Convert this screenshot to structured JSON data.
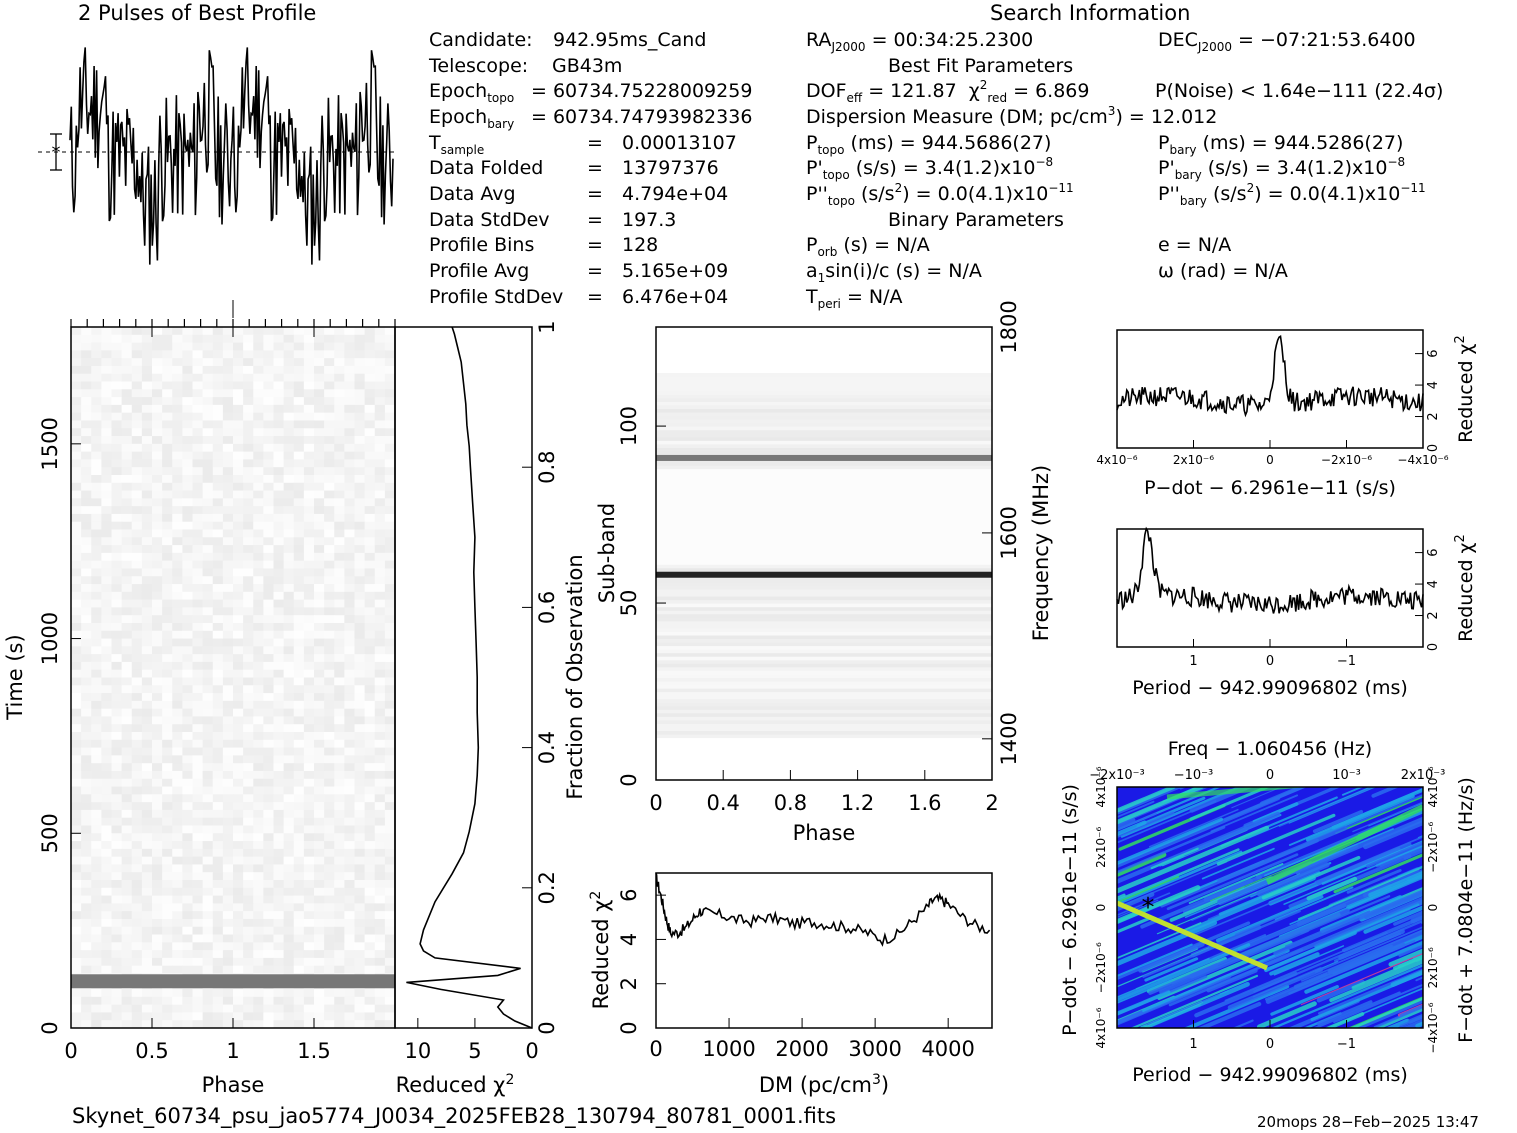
{
  "header": {
    "profile_title": "2 Pulses of Best Profile",
    "search_title": "Search Information",
    "best_fit_title": "Best Fit Parameters",
    "binary_title": "Binary Parameters"
  },
  "info_left": [
    {
      "label": "Candidate:",
      "value": "942.95ms_Cand"
    },
    {
      "label": "Telescope:",
      "value": "GB43m"
    },
    {
      "label": "Epoch",
      "sub": "topo",
      "value": "= 60734.75228009259"
    },
    {
      "label": "Epoch",
      "sub": "bary",
      "value": "= 60734.74793982336"
    },
    {
      "label": "T",
      "sub": "sample",
      "value": "0.00013107"
    },
    {
      "label": "Data Folded",
      "value": "13797376"
    },
    {
      "label": "Data Avg",
      "value": "4.794e+04"
    },
    {
      "label": "Data StdDev",
      "value": "197.3"
    },
    {
      "label": "Profile Bins",
      "value": "128"
    },
    {
      "label": "Profile Avg",
      "value": "5.165e+09"
    },
    {
      "label": "Profile StdDev",
      "value": "6.476e+04"
    }
  ],
  "info_mid": {
    "ra_label": "RA",
    "ra_sub": "J2000",
    "ra_value": "= 00:34:25.2300",
    "dec_label": "DEC",
    "dec_sub": "J2000",
    "dec_value": "= −07:21:53.6400",
    "dof_label": "DOF",
    "dof_sub": "eff",
    "dof_value": "= 121.87",
    "chi_label": "χ",
    "chi_sup": "2",
    "chi_sub": "red",
    "chi_value": "= 6.869",
    "noise": "P(Noise) < 1.64e−111  (22.4σ)",
    "dm": "Dispersion Measure (DM; pc/cm",
    "dm_sup": "3",
    "dm_value": ") = 12.012",
    "ptopo_label": "P",
    "ptopo_sub": "topo",
    "ptopo_value": "(ms) =  944.5686(27)",
    "pbary_label": "P",
    "pbary_sub": "bary",
    "pbary_value": "(ms) =  944.5286(27)",
    "pdtopo_label": "P'",
    "pdtopo_sub": "topo",
    "pdtopo_value": "(s/s) =  3.4(1.2)x10",
    "pdtopo_exp": "−8",
    "pdbary_label": "P'",
    "pdbary_sub": "bary",
    "pdbary_value": "(s/s) =  3.4(1.2)x10",
    "pdbary_exp": "−8",
    "pddtopo_label": "P''",
    "pddtopo_sub": "topo",
    "pddtopo_value": "(s/s",
    "pddtopo_sup": "2",
    "pddtopo_rest": ") = 0.0(4.1)x10",
    "pddtopo_exp": "−11",
    "pddbary_label": "P''",
    "pddbary_sub": "bary",
    "pddbary_value": "(s/s",
    "pddbary_sup": "2",
    "pddbary_rest": ") = 0.0(4.1)x10",
    "pddbary_exp": "−11",
    "porb_label": "P",
    "porb_sub": "orb",
    "porb_value": "(s) = N/A",
    "a1_label": "a",
    "a1_sub": "1",
    "a1_value": "sin(i)/c (s) = N/A",
    "tperi_label": "T",
    "tperi_sub": "peri",
    "tperi_value": "= N/A",
    "e_value": "e = N/A",
    "omega_value": "ω (rad) = N/A"
  },
  "footer": {
    "filename": "Skynet_60734_psu_jao5774_J0034_2025FEB28_130794_80781_0001.fits",
    "stamp": "20mops 28−Feb−2025 13:47"
  },
  "chart_data": [
    {
      "id": "profile",
      "type": "line",
      "title": "2 Pulses of Best Profile",
      "xlim": [
        0,
        2
      ],
      "seed": 11,
      "n": 256,
      "period_repeat": 128,
      "baseline": 0.5
    },
    {
      "id": "time_phase",
      "type": "heatmap",
      "xlabel": "Phase",
      "ylabel": "Time (s)",
      "xlim": [
        0,
        2
      ],
      "ylim": [
        0,
        1800
      ],
      "xticks": [
        0,
        0.5,
        1,
        1.5
      ],
      "xticklabels": [
        "0",
        "0.5",
        "1",
        "1.5"
      ],
      "yticks": [
        0,
        500,
        1000,
        1500
      ],
      "yticklabels": [
        "0",
        "500",
        "1000",
        "1500"
      ],
      "bright_row_time": 120
    },
    {
      "id": "time_chi2",
      "type": "line",
      "xlabel": "Reduced χ",
      "xlabel_sup": "2",
      "ylabel": "Fraction of Observation",
      "xlim": [
        12,
        0
      ],
      "ylim": [
        0,
        1
      ],
      "xticks": [
        10,
        5,
        0
      ],
      "xticklabels": [
        "10",
        "5",
        "0"
      ],
      "yticks": [
        0,
        0.2,
        0.4,
        0.6,
        0.8,
        1
      ],
      "yticklabels": [
        "0",
        "0.2",
        "0.4",
        "0.6",
        "0.8",
        "1"
      ],
      "x": [
        0,
        1.5,
        2.5,
        3,
        2.5,
        8,
        11,
        3,
        1,
        8.5,
        9.5,
        9.8,
        9.5,
        8.5,
        7,
        6,
        5.5,
        5,
        4.8,
        4.7,
        4.8,
        4.8,
        4.9,
        5,
        5.1,
        5,
        5.2,
        5.4,
        5.5,
        5.7,
        5.8,
        6,
        6.2,
        6.5,
        6.8,
        7
      ],
      "y": [
        0,
        0.01,
        0.02,
        0.03,
        0.04,
        0.055,
        0.065,
        0.075,
        0.085,
        0.1,
        0.11,
        0.12,
        0.14,
        0.18,
        0.22,
        0.25,
        0.28,
        0.32,
        0.36,
        0.4,
        0.45,
        0.5,
        0.55,
        0.6,
        0.65,
        0.7,
        0.75,
        0.8,
        0.83,
        0.86,
        0.89,
        0.92,
        0.95,
        0.97,
        0.99,
        1
      ]
    },
    {
      "id": "subband_phase",
      "type": "heatmap",
      "xlabel": "Phase",
      "ylabel": "Sub-band",
      "ylabel_right": "Frequency (MHz)",
      "xlim": [
        0,
        2
      ],
      "ylim": [
        0,
        128
      ],
      "xticks": [
        0,
        0.4,
        0.8,
        1.2,
        1.6,
        2
      ],
      "xticklabels": [
        "0",
        "0.4",
        "0.8",
        "1.2",
        "1.6",
        "2"
      ],
      "yticks": [
        0,
        50,
        100
      ],
      "yticklabels": [
        "0",
        "50",
        "100"
      ],
      "freq_ticks": [
        1400,
        1600,
        1800
      ],
      "freq_range": [
        1360,
        1800
      ],
      "bright_bands": [
        58,
        91
      ]
    },
    {
      "id": "dm_chi2",
      "type": "line",
      "xlabel": "DM (pc/cm",
      "xlabel_sup": "3",
      "xlabel_end": ")",
      "ylabel": "Reduced χ",
      "ylabel_sup": "2",
      "xlim": [
        0,
        4600
      ],
      "ylim": [
        0,
        7
      ],
      "xticks": [
        0,
        1000,
        2000,
        3000,
        4000
      ],
      "xticklabels": [
        "0",
        "1000",
        "2000",
        "3000",
        "4000"
      ],
      "yticks": [
        0,
        2,
        4,
        6
      ],
      "yticklabels": [
        "0",
        "2",
        "4",
        "6"
      ],
      "x": [
        0,
        50,
        100,
        150,
        200,
        300,
        400,
        500,
        600,
        700,
        900,
        1100,
        1300,
        1500,
        1700,
        1900,
        2100,
        2300,
        2500,
        2700,
        2900,
        3100,
        3300,
        3500,
        3700,
        3800,
        3900,
        4000,
        4200,
        4400,
        4600
      ],
      "y": [
        6.8,
        6.2,
        5.5,
        4.8,
        4.3,
        4.3,
        4.5,
        4.9,
        5.3,
        5.2,
        5.1,
        4.9,
        4.8,
        5.0,
        4.9,
        4.7,
        4.8,
        4.7,
        4.6,
        4.5,
        4.3,
        4.0,
        4.2,
        4.8,
        5.4,
        5.8,
        5.8,
        5.6,
        5.0,
        4.6,
        4.4
      ]
    },
    {
      "id": "pdot_chi2",
      "type": "line",
      "xlabel": "P−dot − 6.2961e−11 (s/s)",
      "ylabel": "Reduced χ",
      "ylabel_sup": "2",
      "xlim": [
        4.5e-08,
        -4.5e-08
      ],
      "ylim": [
        0,
        7.5
      ],
      "xticklabels": [
        "4x10⁻⁶",
        "2x10⁻⁶",
        "0",
        "−2x10⁻⁶",
        "−4x10⁻⁶"
      ],
      "yticks": [
        0,
        2,
        4,
        6
      ],
      "yticklabels": [
        "0",
        "2",
        "4",
        "6"
      ],
      "seed": 21,
      "peak_x": 0.53,
      "peak_value": 7
    },
    {
      "id": "period_chi2",
      "type": "line",
      "xlabel": "Period − 942.99096802 (ms)",
      "ylabel": "Reduced χ",
      "ylabel_sup": "2",
      "xlim": [
        2,
        -2
      ],
      "ylim": [
        0,
        7.5
      ],
      "xticks": [
        1,
        0,
        -1
      ],
      "xticklabels": [
        "1",
        "0",
        "−1"
      ],
      "yticks": [
        0,
        2,
        4,
        6
      ],
      "yticklabels": [
        "0",
        "2",
        "4",
        "6"
      ],
      "seed": 33,
      "peak_x": 0.1,
      "peak_value": 7
    },
    {
      "id": "p_pdot_plane",
      "type": "heatmap",
      "title": "Freq − 1.060456 (Hz)",
      "xlabel": "Period − 942.99096802 (ms)",
      "ylabel": "P−dot − 6.2961e−11 (s/s)",
      "ylabel_right": "F−dot + 7.0804e−11 (Hz/s)",
      "xticks": [
        1,
        0,
        -1
      ],
      "xticklabels": [
        "1",
        "0",
        "−1"
      ],
      "topticklabels": [
        "−2x10⁻³",
        "−10⁻³",
        "0",
        "10⁻³",
        "2x10⁻³"
      ],
      "leftticklabels": [
        "4x10⁻⁶",
        "−2x10⁻⁶",
        "0",
        "2x10⁻⁶",
        "4x10⁻⁶"
      ],
      "rightticklabels": [
        "−4x10⁻⁶",
        "2x10⁻⁶",
        "0",
        "−2x10⁻⁶",
        "4x10⁻⁶"
      ],
      "colors": [
        "#1a1ae6",
        "#2a6cf0",
        "#1fa6e8",
        "#28d0c8",
        "#30e060",
        "#c0e030",
        "#e04090"
      ],
      "best_marker_x": 1.6,
      "best_marker_y": 0
    }
  ]
}
